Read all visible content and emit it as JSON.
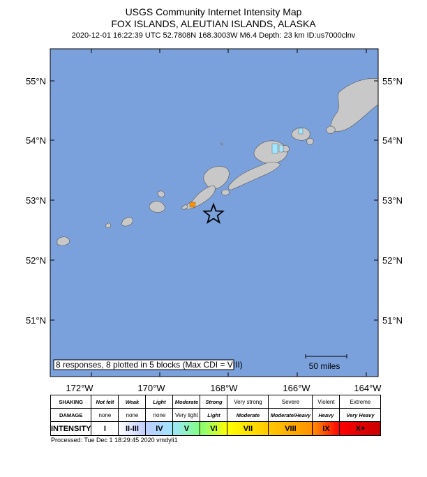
{
  "header": {
    "line1": "USGS Community Internet Intensity Map",
    "line2": "FOX ISLANDS, ALEUTIAN ISLANDS, ALASKA",
    "line3": "2020-12-01 16:22:39 UTC 52.7808N 168.3003W M6.4 Depth: 23 km ID:us7000clnv"
  },
  "map": {
    "ocean_color": "#7ba1dc",
    "land_color": "#c8c8c8",
    "lat_labels": [
      "55°N",
      "54°N",
      "53°N",
      "52°N",
      "51°N"
    ],
    "lon_labels": [
      "172°W",
      "170°W",
      "168°W",
      "166°W",
      "164°W"
    ],
    "responses_text": "8 responses, 8 plotted in 5 blocks (Max CDI = VIII)",
    "scale_text": "50 miles",
    "epicenter_icon": "star-icon"
  },
  "legend": {
    "row_headers": [
      "SHAKING",
      "DAMAGE",
      "INTENSITY"
    ],
    "shaking": [
      "Not felt",
      "Weak",
      "Light",
      "Moderate",
      "Strong",
      "Very strong",
      "Severe",
      "Violent",
      "Extreme"
    ],
    "damage": [
      "none",
      "none",
      "none",
      "Very light",
      "Light",
      "Moderate",
      "Moderate/Heavy",
      "Heavy",
      "Very Heavy"
    ],
    "intensity": [
      "I",
      "II-III",
      "IV",
      "V",
      "VI",
      "VII",
      "VIII",
      "IX",
      "X+"
    ],
    "colors": [
      "#ffffff",
      "#bfccff",
      "#a0e6ff",
      "#80ff80",
      "#ffff00",
      "#ffc800",
      "#ff9100",
      "#ff0000",
      "#c80000"
    ]
  },
  "footer": {
    "processed": "Processed: Tue Dec  1 18:29:45 2020 vmdyli1"
  }
}
